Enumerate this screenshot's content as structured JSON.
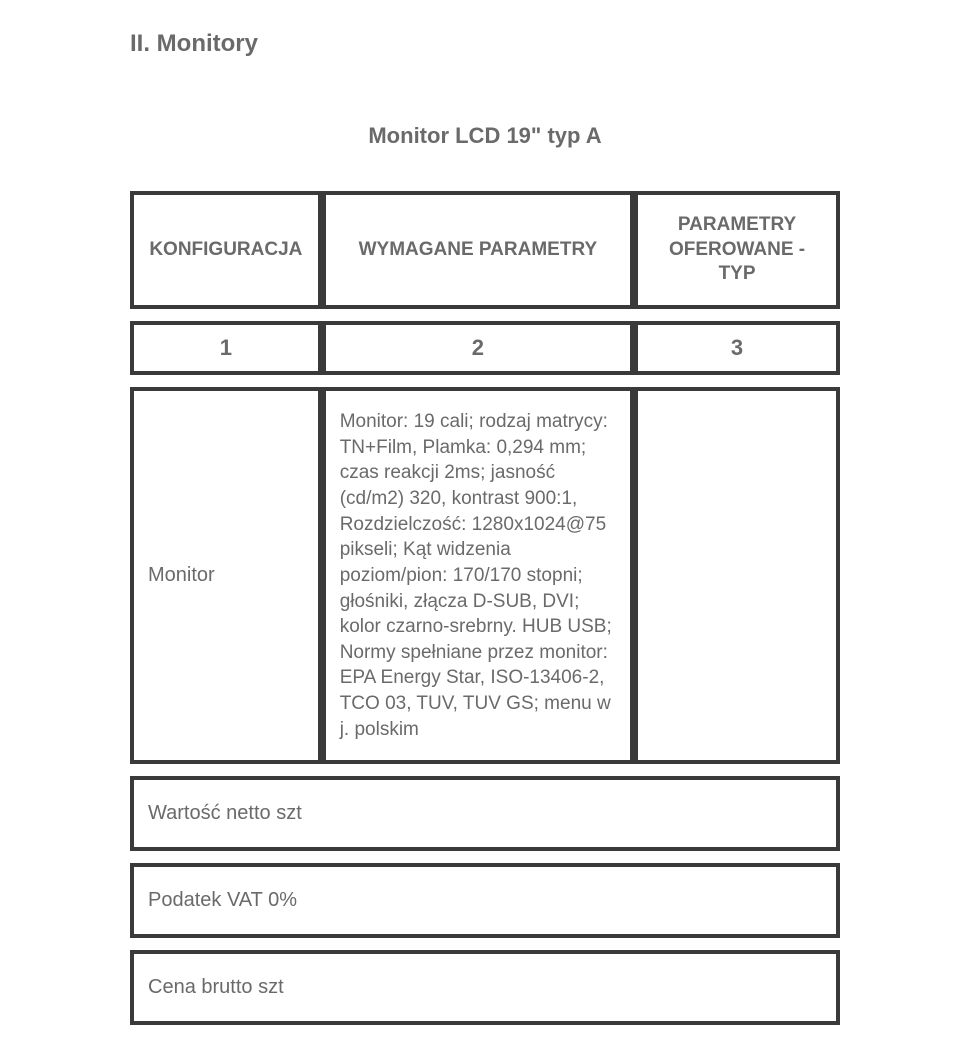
{
  "page": {
    "title": "II. Monitory",
    "subtitle": "Monitor LCD 19\" typ A"
  },
  "table": {
    "border_color": "#3a3a3a",
    "border_width": 4,
    "text_color": "#6a6a6a",
    "background_color": "#ffffff",
    "columns": [
      {
        "header": "KONFIGURACJA",
        "num": "1",
        "width_pct": 27
      },
      {
        "header": "WYMAGANE PARAMETRY",
        "num": "2",
        "width_pct": 44
      },
      {
        "header": "PARAMETRY OFEROWANE - TYP",
        "num": "3",
        "width_pct": 29
      }
    ],
    "spec_row": {
      "label": "Monitor",
      "description": "Monitor: 19 cali; rodzaj matrycy: TN+Film, Plamka: 0,294 mm; czas reakcji 2ms; jasność (cd/m2) 320, kontrast 900:1, Rozdzielczość: 1280x1024@75 pikseli; Kąt widzenia poziom/pion: 170/170 stopni; głośniki, złącza D-SUB, DVI; kolor czarno-srebrny. HUB USB; Normy spełniane przez monitor: EPA Energy Star, ISO-13406-2, TCO 03, TUV, TUV GS; menu w j. polskim",
      "offered": ""
    },
    "footer_rows": [
      {
        "label": "Wartość netto szt"
      },
      {
        "label": "Podatek VAT 0%"
      },
      {
        "label": "Cena brutto szt"
      }
    ]
  }
}
